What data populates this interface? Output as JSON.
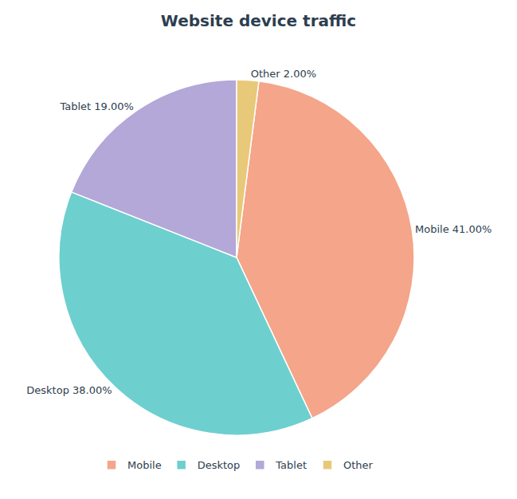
{
  "chart_data": {
    "type": "pie",
    "title": "Website device traffic",
    "categories": [
      "Mobile",
      "Desktop",
      "Tablet",
      "Other"
    ],
    "values": [
      41,
      38,
      19,
      2
    ],
    "value_labels": [
      "Mobile 41.00%",
      "Desktop 38.00%",
      "Tablet 19.00%",
      "Other 2.00%"
    ],
    "colors": [
      "#f4a58a",
      "#6ecfcf",
      "#b3a8d8",
      "#e8c97a"
    ],
    "data_labels": true,
    "legend": "bottom"
  }
}
